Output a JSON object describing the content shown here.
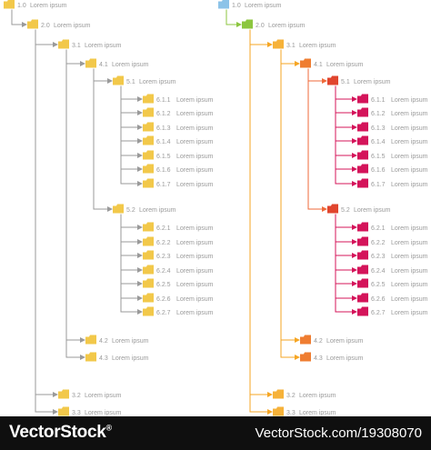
{
  "diagram": {
    "trees": [
      {
        "name": "yellow",
        "colors": {
          "l1": "#f2c84a",
          "l2": "#f2c84a",
          "l3": "#f2c84a",
          "l4": "#f2c84a",
          "l5": "#f2c84a",
          "l6": "#f2c84a",
          "root_line": "#9a9a9a",
          "line": "#9a9a9a",
          "line_l3": "#9a9a9a",
          "line_l4": "#9a9a9a",
          "line_l5": "#9a9a9a"
        }
      },
      {
        "name": "colored",
        "colors": {
          "l1": "#8cc3e8",
          "l2": "#8cc63f",
          "l3": "#f6b23a",
          "l4": "#ef7d31",
          "l5": "#e0452e",
          "l6": "#d4145a",
          "root_line": "#8cc63f",
          "line": "#f6a623",
          "line_l3": "#f6a623",
          "line_l4": "#ef6a3a",
          "line_l5": "#d4145a"
        }
      }
    ],
    "nodes": [
      {
        "num": "1.0",
        "label": "Lorem ipsum",
        "level": 1
      },
      {
        "num": "2.0",
        "label": "Lorem ipsum",
        "level": 2
      },
      {
        "num": "3.1",
        "label": "Lorem ipsum",
        "level": 3
      },
      {
        "num": "4.1",
        "label": "Lorem ipsum",
        "level": 4
      },
      {
        "num": "5.1",
        "label": "Lorem ipsum",
        "level": 5
      },
      {
        "num": "6.1.1",
        "label": "Lorem ipsum",
        "level": 6
      },
      {
        "num": "6.1.2",
        "label": "Lorem ipsum",
        "level": 6
      },
      {
        "num": "6.1.3",
        "label": "Lorem ipsum",
        "level": 6
      },
      {
        "num": "6.1.4",
        "label": "Lorem ipsum",
        "level": 6
      },
      {
        "num": "6.1.5",
        "label": "Lorem ipsum",
        "level": 6
      },
      {
        "num": "6.1.6",
        "label": "Lorem ipsum",
        "level": 6
      },
      {
        "num": "6.1.7",
        "label": "Lorem ipsum",
        "level": 6
      },
      {
        "num": "5.2",
        "label": "Lorem ipsum",
        "level": 5
      },
      {
        "num": "6.2.1",
        "label": "Lorem ipsum",
        "level": 6
      },
      {
        "num": "6.2.2",
        "label": "Lorem ipsum",
        "level": 6
      },
      {
        "num": "6.2.3",
        "label": "Lorem ipsum",
        "level": 6
      },
      {
        "num": "6.2.4",
        "label": "Lorem ipsum",
        "level": 6
      },
      {
        "num": "6.2.5",
        "label": "Lorem ipsum",
        "level": 6
      },
      {
        "num": "6.2.6",
        "label": "Lorem ipsum",
        "level": 6
      },
      {
        "num": "6.2.7",
        "label": "Lorem ipsum",
        "level": 6
      },
      {
        "num": "4.2",
        "label": "Lorem ipsum",
        "level": 4
      },
      {
        "num": "4.3",
        "label": "Lorem ipsum",
        "level": 4
      },
      {
        "num": "3.2",
        "label": "Lorem ipsum",
        "level": 3
      },
      {
        "num": "3.3",
        "label": "Lorem ipsum",
        "level": 3
      }
    ]
  },
  "footer": {
    "brand": "VectorStock",
    "brand_mark": "®",
    "url": "VectorStock.com/19308070"
  }
}
